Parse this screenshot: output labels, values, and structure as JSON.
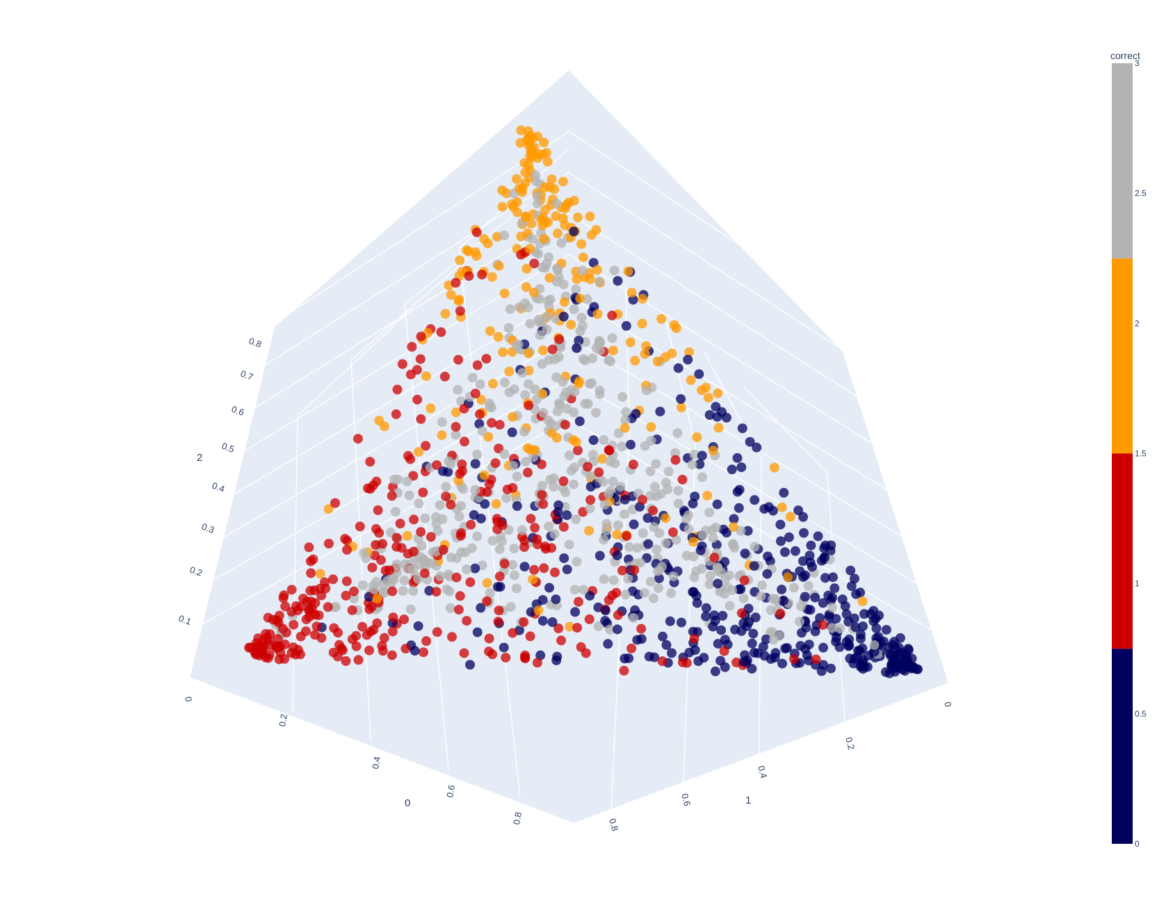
{
  "chart_data": {
    "type": "scatter",
    "projection": "3d",
    "axes": [
      {
        "title": "0",
        "ticks": [
          "0",
          "0.2",
          "0.4",
          "0.6",
          "0.8"
        ]
      },
      {
        "title": "1",
        "ticks": [
          "0",
          "0.2",
          "0.4",
          "0.6",
          "0.8"
        ]
      },
      {
        "title": "2",
        "ticks": [
          "0.1",
          "0.2",
          "0.3",
          "0.4",
          "0.5",
          "0.6",
          "0.7",
          "0.8"
        ]
      }
    ],
    "colorbar": {
      "title": "correct",
      "range": [
        0,
        3
      ],
      "ticks": [
        "0",
        "0.5",
        "1",
        "1.5",
        "2",
        "2.5",
        "3"
      ],
      "bands": [
        {
          "from": 0,
          "to": 0.75,
          "color": "#00005f"
        },
        {
          "from": 0.75,
          "to": 1.5,
          "color": "#cc0000"
        },
        {
          "from": 1.5,
          "to": 2.25,
          "color": "#ff9900"
        },
        {
          "from": 2.25,
          "to": 3,
          "color": "#b3b3b3"
        }
      ]
    },
    "series": [
      {
        "correct": 0,
        "color": "#00005f",
        "cluster": "axis 1 vertex",
        "approx_points": 420
      },
      {
        "correct": 1,
        "color": "#cc0000",
        "cluster": "axis 0 vertex",
        "approx_points": 330
      },
      {
        "correct": 2,
        "color": "#ff9900",
        "cluster": "axis 2 vertex",
        "approx_points": 230
      },
      {
        "correct": 3,
        "color": "#b3b3b3",
        "cluster": "spread",
        "approx_points": 460
      }
    ],
    "scene_background": "#e5ecf6",
    "grid_color": "#ffffff"
  }
}
